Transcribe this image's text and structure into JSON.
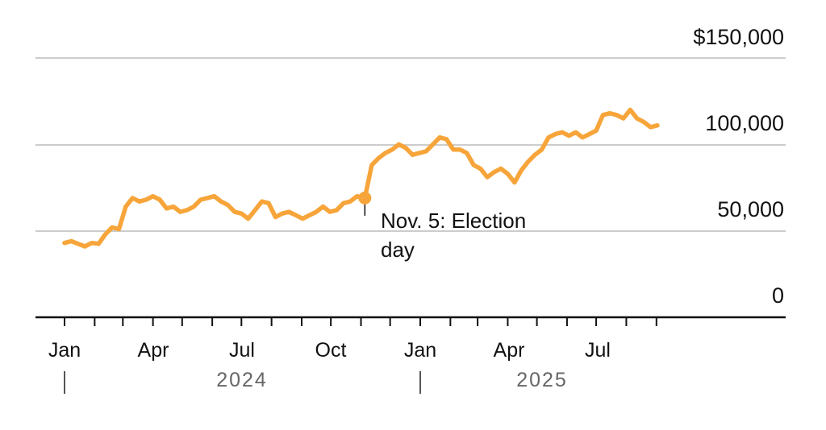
{
  "chart_data": {
    "type": "line",
    "y_tick_labels": [
      "$150,000",
      "100,000",
      "50,000",
      "0"
    ],
    "y_ticks": [
      150000,
      100000,
      50000,
      0
    ],
    "ylim": [
      0,
      150000
    ],
    "x_tick_labels": [
      "Jan",
      "Apr",
      "Jul",
      "Oct",
      "Jan",
      "Apr",
      "Jul"
    ],
    "year_labels": [
      "2024",
      "2025"
    ],
    "grid": true,
    "line_color": "#F7A53A",
    "series": [
      {
        "x": [
          "2024-01-01",
          "2024-01-08",
          "2024-01-15",
          "2024-01-22",
          "2024-01-29",
          "2024-02-05",
          "2024-02-12",
          "2024-02-19",
          "2024-02-26",
          "2024-03-04",
          "2024-03-11",
          "2024-03-18",
          "2024-03-25",
          "2024-04-01",
          "2024-04-08",
          "2024-04-15",
          "2024-04-22",
          "2024-04-29",
          "2024-05-06",
          "2024-05-13",
          "2024-05-20",
          "2024-05-27",
          "2024-06-03",
          "2024-06-10",
          "2024-06-17",
          "2024-06-24",
          "2024-07-01",
          "2024-07-08",
          "2024-07-15",
          "2024-07-22",
          "2024-07-29",
          "2024-08-05",
          "2024-08-12",
          "2024-08-19",
          "2024-08-26",
          "2024-09-02",
          "2024-09-09",
          "2024-09-16",
          "2024-09-23",
          "2024-09-30",
          "2024-10-07",
          "2024-10-14",
          "2024-10-21",
          "2024-10-28",
          "2024-11-05",
          "2024-11-12",
          "2024-11-19",
          "2024-11-26",
          "2024-12-03",
          "2024-12-10",
          "2024-12-17",
          "2024-12-24",
          "2024-12-31",
          "2025-01-07",
          "2025-01-14",
          "2025-01-21",
          "2025-01-28",
          "2025-02-04",
          "2025-02-11",
          "2025-02-18",
          "2025-02-25",
          "2025-03-04",
          "2025-03-11",
          "2025-03-18",
          "2025-03-25",
          "2025-04-01",
          "2025-04-08",
          "2025-04-15",
          "2025-04-22",
          "2025-04-29",
          "2025-05-06",
          "2025-05-13",
          "2025-05-20",
          "2025-05-27",
          "2025-06-03",
          "2025-06-10",
          "2025-06-17",
          "2025-06-24",
          "2025-07-01",
          "2025-07-08",
          "2025-07-15",
          "2025-07-22",
          "2025-07-29",
          "2025-08-05",
          "2025-08-12",
          "2025-08-19",
          "2025-08-26",
          "2025-09-02"
        ],
        "values": [
          43000,
          44000,
          42500,
          41000,
          43000,
          42500,
          48000,
          52000,
          51000,
          64000,
          69000,
          67000,
          68000,
          70000,
          68000,
          63000,
          64000,
          61000,
          62000,
          64000,
          68000,
          69000,
          70000,
          67000,
          65000,
          61000,
          60000,
          57000,
          62000,
          67000,
          66000,
          58000,
          60000,
          61000,
          59000,
          57000,
          59000,
          61000,
          64000,
          61000,
          62000,
          66000,
          67000,
          70000,
          69000,
          88000,
          92000,
          95000,
          97000,
          100000,
          98000,
          94000,
          95000,
          96000,
          100000,
          104000,
          103000,
          97000,
          97000,
          95000,
          88000,
          86000,
          81000,
          84000,
          86000,
          83000,
          78000,
          85000,
          90000,
          94000,
          97000,
          104000,
          106000,
          107000,
          105000,
          107000,
          104000,
          106000,
          108000,
          117000,
          118000,
          117000,
          115000,
          120000,
          115000,
          113000,
          110000,
          111000
        ]
      }
    ],
    "annotation": {
      "date": "2024-11-05",
      "value": 69000,
      "text_lines": [
        "Nov. 5: Election",
        "day"
      ]
    }
  }
}
